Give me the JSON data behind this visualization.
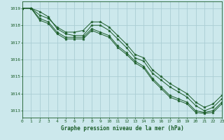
{
  "title": "Graphe pression niveau de la mer (hPa)",
  "background_color": "#cce8ec",
  "grid_color": "#aacdd4",
  "line_color": "#1a5c28",
  "xlim": [
    0,
    23
  ],
  "ylim": [
    1012.6,
    1019.4
  ],
  "yticks": [
    1013,
    1014,
    1015,
    1016,
    1017,
    1018,
    1019
  ],
  "xticks": [
    0,
    1,
    2,
    3,
    4,
    5,
    6,
    7,
    8,
    9,
    10,
    11,
    12,
    13,
    14,
    15,
    16,
    17,
    18,
    19,
    20,
    21,
    22,
    23
  ],
  "series": [
    [
      1019.0,
      1019.0,
      1018.8,
      1018.5,
      1017.8,
      1017.5,
      1017.4,
      1017.4,
      1018.0,
      1018.0,
      1017.7,
      1017.2,
      1016.7,
      1016.1,
      1015.9,
      1015.2,
      1014.8,
      1014.4,
      1014.1,
      1013.8,
      1013.3,
      1013.0,
      1013.2,
      1013.7
    ],
    [
      1019.0,
      1019.0,
      1018.4,
      1018.2,
      1017.6,
      1017.3,
      1017.3,
      1017.3,
      1017.8,
      1017.6,
      1017.4,
      1016.8,
      1016.4,
      1015.9,
      1015.6,
      1014.9,
      1014.4,
      1013.9,
      1013.7,
      1013.5,
      1013.0,
      1012.9,
      1013.0,
      1013.5
    ],
    [
      1019.0,
      1019.0,
      1018.3,
      1018.1,
      1017.5,
      1017.2,
      1017.2,
      1017.2,
      1017.7,
      1017.5,
      1017.3,
      1016.7,
      1016.3,
      1015.8,
      1015.5,
      1014.8,
      1014.3,
      1013.8,
      1013.6,
      1013.4,
      1012.9,
      1012.85,
      1012.9,
      1013.4
    ],
    [
      1019.0,
      1019.0,
      1018.6,
      1018.4,
      1017.9,
      1017.6,
      1017.6,
      1017.7,
      1018.2,
      1018.2,
      1017.9,
      1017.4,
      1016.9,
      1016.3,
      1016.1,
      1015.4,
      1015.0,
      1014.6,
      1014.3,
      1014.0,
      1013.5,
      1013.2,
      1013.4,
      1013.9
    ]
  ]
}
